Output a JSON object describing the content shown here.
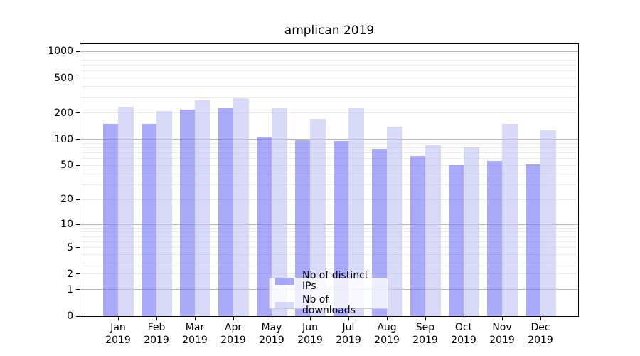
{
  "title": "amplican 2019",
  "chart_data": {
    "type": "bar",
    "title": "amplican 2019",
    "categories": [
      "Jan 2019",
      "Feb 2019",
      "Mar 2019",
      "Apr 2019",
      "May 2019",
      "Jun 2019",
      "Jul 2019",
      "Aug 2019",
      "Sep 2019",
      "Oct 2019",
      "Nov 2019",
      "Dec 2019"
    ],
    "series": [
      {
        "name": "Nb of distinct IPs",
        "color": "rgba(114,114,246,0.6)",
        "values": [
          150,
          151,
          217,
          227,
          108,
          97,
          96,
          78,
          64,
          50,
          57,
          51
        ]
      },
      {
        "name": "Nb of downloads",
        "color": "rgba(192,192,243,0.6)",
        "values": [
          235,
          210,
          281,
          294,
          225,
          170,
          228,
          140,
          86,
          81,
          150,
          127
        ]
      }
    ],
    "yscale": "symlog",
    "y_ticks": [
      1000,
      500,
      200,
      100,
      50,
      20,
      10,
      5,
      2,
      1,
      0
    ],
    "ylim": [
      0,
      1212
    ],
    "grid": "on",
    "legend_position": "lower center"
  }
}
